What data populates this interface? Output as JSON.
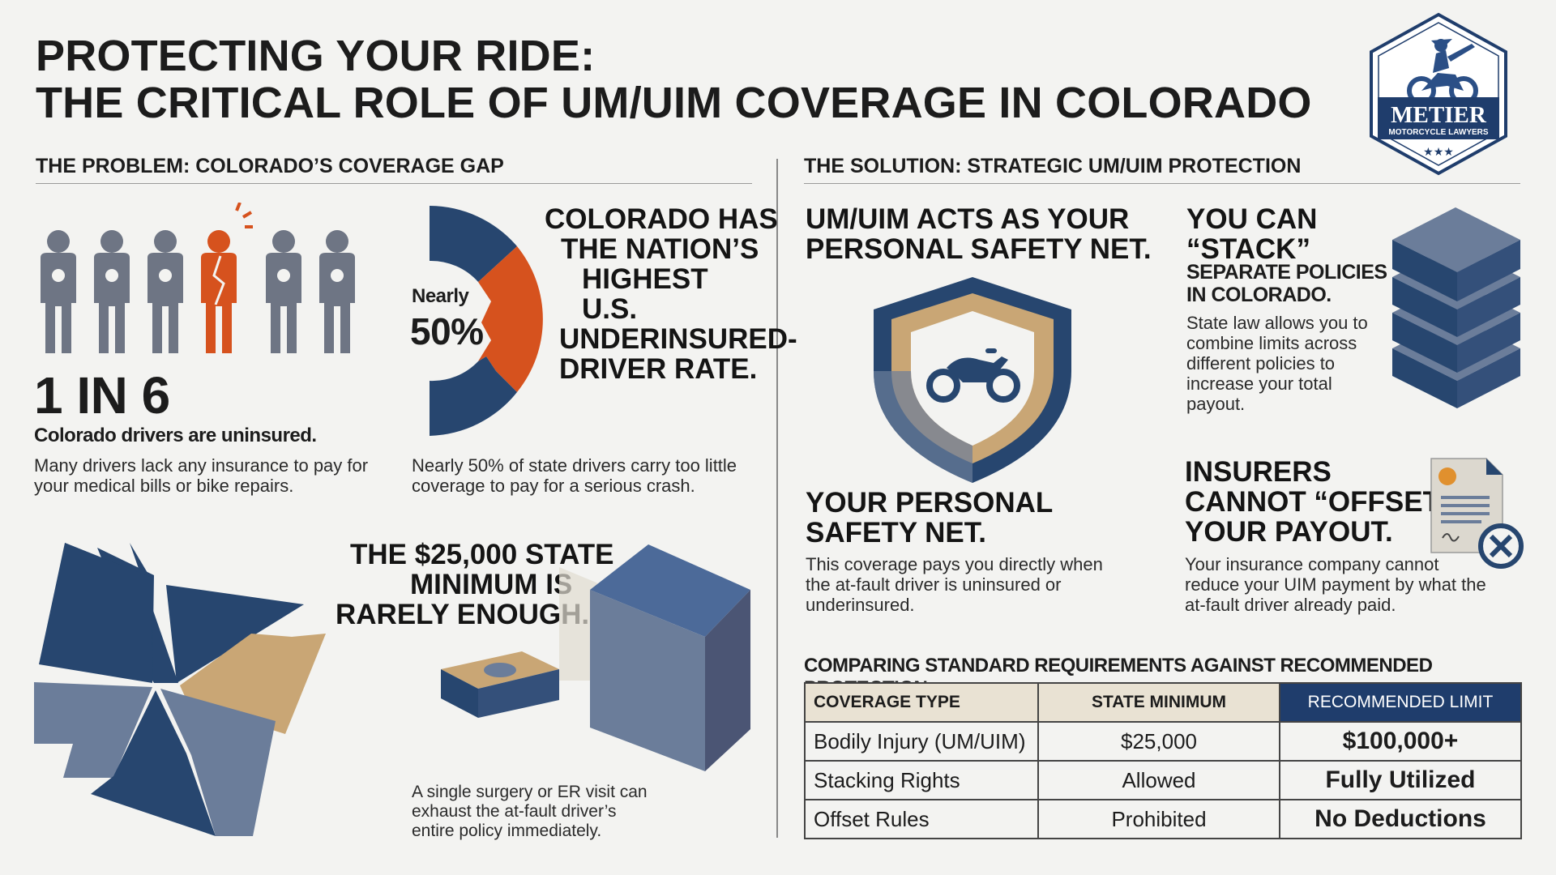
{
  "title": {
    "line1": "PROTECTING YOUR RIDE:",
    "line2": "THE CRITICAL ROLE OF UM/UIM COVERAGE IN COLORADO"
  },
  "logo": {
    "name": "METIER",
    "subtitle": "MOTORCYCLE LAWYERS",
    "stars": "★★★"
  },
  "problem": {
    "heading": "THE PROBLEM: COLORADO’S COVERAGE GAP",
    "uninsured": {
      "stat": "1 IN 6",
      "caption": "Colorado drivers are uninsured.",
      "text_l1": "Many drivers lack any insurance to pay for",
      "text_l2": "your medical bills or bike repairs.",
      "figures_total": 6,
      "figures_highlight_index": 3
    },
    "underinsured": {
      "donut_label_small": "Nearly",
      "donut_label_big": "50%",
      "donut_fraction": 0.5,
      "headline": [
        "COLORADO HAS",
        "THE NATION’S",
        "HIGHEST",
        "U.S.",
        "UNDERINSURED-",
        "DRIVER RATE."
      ],
      "text_l1": "Nearly 50% of state drivers carry too little",
      "text_l2": "coverage to pay for a serious crash."
    },
    "minimum": {
      "headline": [
        "THE $25,000 STATE",
        "MINIMUM IS",
        "RARELY ENOUGH."
      ],
      "text": [
        "A single surgery or ER visit can",
        "exhaust the at-fault driver’s",
        "entire policy immediately."
      ]
    }
  },
  "solution": {
    "heading": "THE SOLUTION: STRATEGIC UM/UIM PROTECTION",
    "safety_net_top": [
      "UM/UIM ACTS AS YOUR",
      "PERSONAL SAFETY NET."
    ],
    "safety_net": {
      "headline": [
        "YOUR PERSONAL",
        "SAFETY NET."
      ],
      "text": [
        "This coverage pays you directly when",
        "the at-fault driver is uninsured or",
        "underinsured."
      ]
    },
    "stack": {
      "headline_big": [
        "YOU CAN",
        "“STACK”"
      ],
      "headline_small": [
        "SEPARATE POLICIES",
        "IN COLORADO."
      ],
      "text": [
        "State law allows you to",
        "combine limits across",
        "different policies to",
        "increase your total",
        "payout."
      ]
    },
    "offset": {
      "headline": [
        "INSURERS",
        "CANNOT “OFFSET”",
        "YOUR PAYOUT."
      ],
      "text": [
        "Your insurance company cannot",
        "reduce your UIM payment by what the",
        "at-fault driver already paid."
      ]
    }
  },
  "comparison": {
    "heading": "COMPARING STANDARD REQUIREMENTS AGAINST RECOMMENDED PROTECTION",
    "columns": [
      "COVERAGE TYPE",
      "STATE MINIMUM",
      "RECOMMENDED LIMIT"
    ],
    "rows": [
      [
        "Bodily Injury (UM/UIM)",
        "$25,000",
        "$100,000+"
      ],
      [
        "Stacking Rights",
        "Allowed",
        "Fully Utilized"
      ],
      [
        "Offset Rules",
        "Prohibited",
        "No Deductions"
      ]
    ]
  },
  "colors": {
    "navy": "#27466f",
    "slate": "#6b7d9a",
    "orange": "#d6521e",
    "tan": "#c9a675",
    "gray_figure": "#6e7584"
  }
}
